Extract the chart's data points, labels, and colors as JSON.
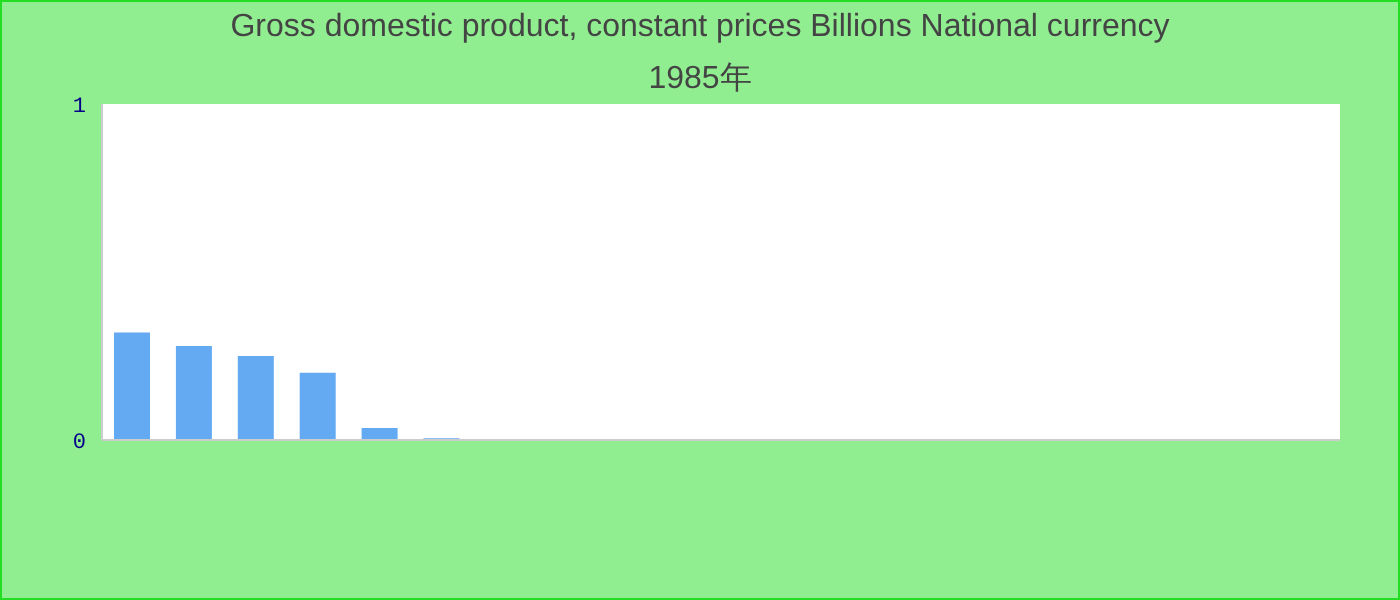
{
  "chart_data": {
    "type": "bar",
    "title": "Gross domestic product, constant prices Billions National currency",
    "subtitle": "1985年",
    "categories": [
      null,
      null,
      null,
      null,
      null,
      null,
      null,
      null,
      null,
      null,
      null,
      null,
      null,
      null,
      null,
      null,
      null,
      null,
      null,
      null
    ],
    "values": [
      0.32,
      0.28,
      0.25,
      0.2,
      0.036,
      0.005,
      0,
      0,
      0,
      0,
      0,
      0,
      0,
      0,
      0,
      0,
      0,
      0,
      0,
      0
    ],
    "color": "#63aaf2",
    "ylim": [
      0,
      1
    ],
    "yticks": [
      0,
      1
    ],
    "grid": false
  }
}
